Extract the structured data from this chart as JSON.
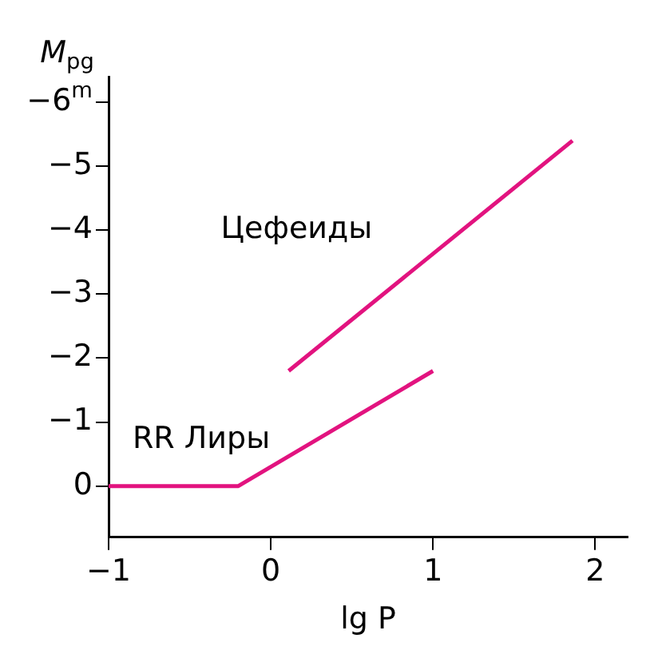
{
  "chart_data": {
    "type": "line",
    "xlabel": "lg P",
    "ylabel": "M$_{pg}$",
    "series": [
      {
        "name": "Цефеиды",
        "color": "#e2137f",
        "x": [
          0.11,
          1.86
        ],
        "values": [
          -1.8,
          -5.4
        ]
      },
      {
        "name": "RR Лиры",
        "color": "#e2137f",
        "x": [
          -1,
          -0.2,
          1
        ],
        "values": [
          0,
          0,
          -1.8
        ]
      }
    ],
    "xlim": [
      -1,
      2.2
    ],
    "xticks": [
      -1,
      0,
      1,
      2
    ],
    "ylim": [
      0.8,
      -6.4
    ],
    "yticks": [
      {
        "value": 0,
        "label": "0"
      },
      {
        "value": -1,
        "label": "−1"
      },
      {
        "value": -2,
        "label": "−2"
      },
      {
        "value": -3,
        "label": "−3"
      },
      {
        "value": -4,
        "label": "−4"
      },
      {
        "value": -5,
        "label": "−5"
      },
      {
        "value": -6,
        "label": "−6$^{m}$"
      }
    ],
    "grid": false,
    "legend": false,
    "marker": "none",
    "line_style": "solid"
  }
}
